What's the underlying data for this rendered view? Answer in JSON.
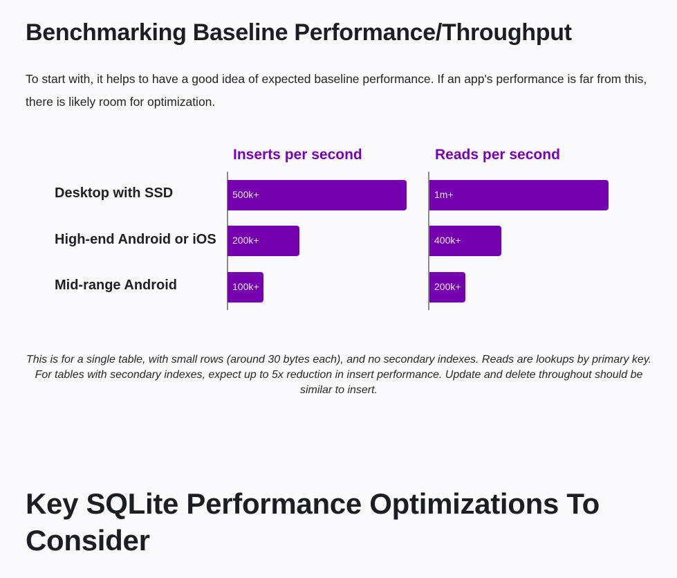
{
  "section1": {
    "heading": "Benchmarking Baseline Performance/Throughput",
    "intro": "To start with, it helps to have a good idea of expected baseline performance. If an app's performance is far from this, there is likely room for optimization."
  },
  "chart_data": {
    "type": "bar",
    "orientation": "horizontal",
    "categories": [
      "Desktop with SSD",
      "High-end Android or iOS",
      "Mid-range Android"
    ],
    "series": [
      {
        "name": "Inserts per second",
        "values": [
          500000,
          200000,
          100000
        ],
        "labels": [
          "500k+",
          "200k+",
          "100k+"
        ],
        "max": 500000
      },
      {
        "name": "Reads per second",
        "values": [
          1000000,
          400000,
          200000
        ],
        "labels": [
          "1m+",
          "400k+",
          "200k+"
        ],
        "max": 1000000
      }
    ],
    "bar_color": "#7400b0",
    "title_color": "#7a00b3",
    "grid": false,
    "legend": "none"
  },
  "notes": {
    "line1": "This is for a single table, with small rows (around 30 bytes each), and no secondary indexes. Reads are lookups by primary key.",
    "line2": "For tables with secondary indexes, expect up to 5x reduction in insert performance. Update and delete throughout should be similar to insert."
  },
  "section2": {
    "heading": "Key SQLite Performance Optimizations To Consider"
  }
}
